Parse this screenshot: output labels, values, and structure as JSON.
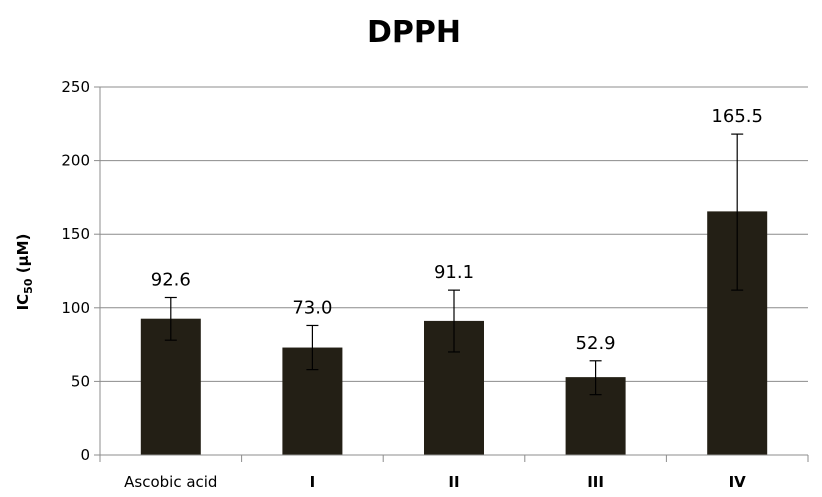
{
  "chart_data": {
    "type": "bar",
    "title": "DPPH",
    "ylabel": {
      "main": "IC",
      "sub": "50",
      "rest": " (µM)"
    },
    "xlabel": "",
    "categories": [
      "Ascobic acid",
      "I",
      "II",
      "III",
      "IV"
    ],
    "values": [
      92.6,
      73.0,
      91.1,
      52.9,
      165.5
    ],
    "data_labels": [
      "92.6",
      "73.0",
      "91.1",
      "52.9",
      "165.5"
    ],
    "error_bars": [
      {
        "low": 78,
        "high": 107
      },
      {
        "low": 58,
        "high": 88
      },
      {
        "low": 70,
        "high": 112
      },
      {
        "low": 41,
        "high": 64
      },
      {
        "low": 112,
        "high": 218
      }
    ],
    "ylim": [
      0,
      250
    ],
    "yticks": [
      0,
      50,
      100,
      150,
      200,
      250
    ],
    "grid": true,
    "bar_color": "#231f15",
    "grid_color": "#8c8c8c",
    "legend": "none"
  }
}
